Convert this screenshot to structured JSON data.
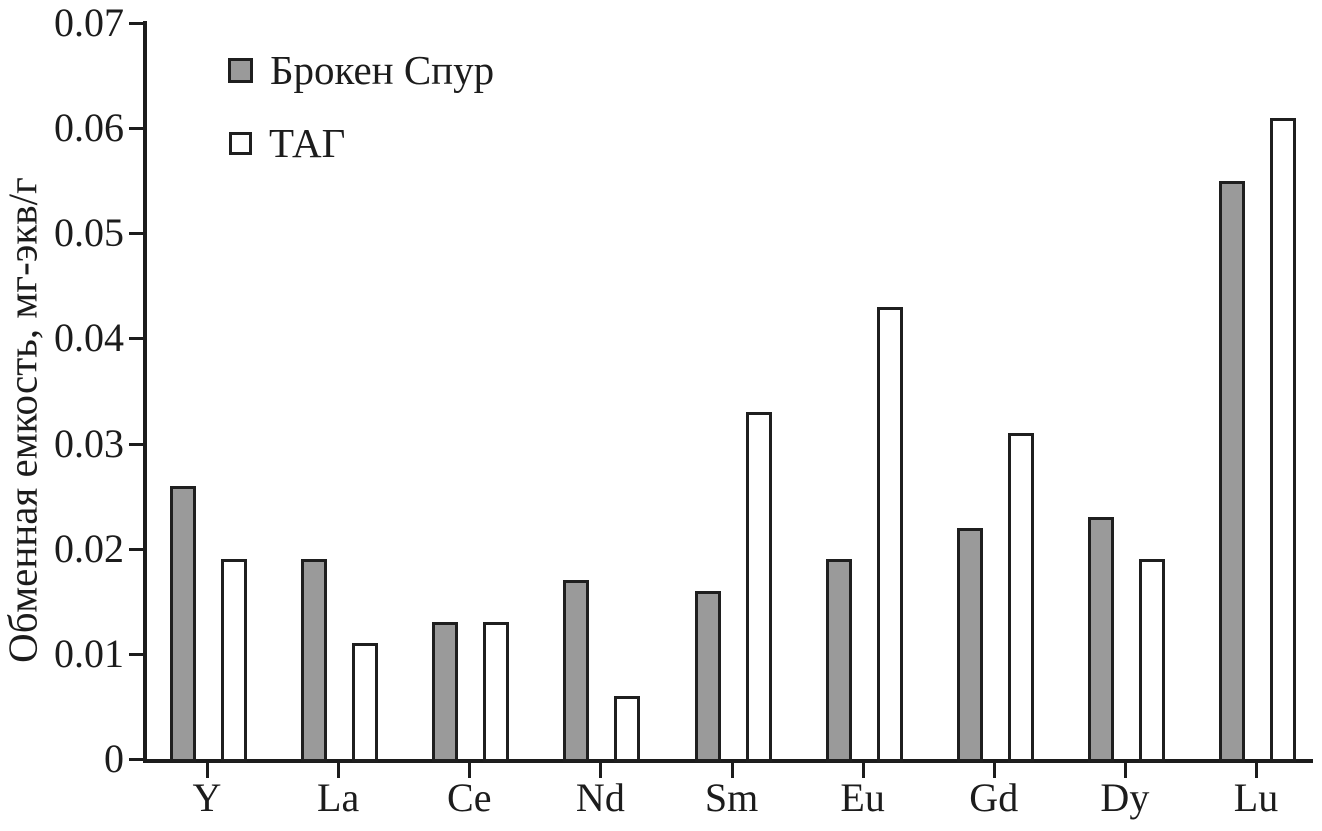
{
  "chart_data": {
    "type": "bar",
    "title": "",
    "xlabel": "",
    "ylabel": "Обменная емкость, мг-экв/г",
    "categories": [
      "Y",
      "La",
      "Ce",
      "Nd",
      "Sm",
      "Eu",
      "Gd",
      "Dy",
      "Lu"
    ],
    "series": [
      {
        "name": "Брокен Спур",
        "fill": "#9a9a9a",
        "values": [
          0.026,
          0.019,
          0.013,
          0.017,
          0.016,
          0.019,
          0.022,
          0.023,
          0.055
        ]
      },
      {
        "name": "ТАГ",
        "fill": "#ffffff",
        "values": [
          0.019,
          0.011,
          0.013,
          0.006,
          0.033,
          0.043,
          0.031,
          0.019,
          0.061
        ]
      }
    ],
    "ylim": [
      0,
      0.07
    ],
    "yticks": [
      0,
      0.01,
      0.02,
      0.03,
      0.04,
      0.05,
      0.06,
      0.07
    ],
    "ytick_labels": [
      "0",
      "0.01",
      "0.02",
      "0.03",
      "0.04",
      "0.05",
      "0.06",
      "0.07"
    ],
    "grid": false,
    "legend_position": "top-left-inside",
    "colors": {
      "axis": "#1c1c1c",
      "bar_border": "#1f1f1f",
      "series1_fill": "#9a9a9a",
      "series2_fill": "#ffffff",
      "text": "#1c1c1c"
    }
  },
  "legend": {
    "items": [
      {
        "label": "Брокен Спур",
        "swatch": "gray-filled-square"
      },
      {
        "label": "ТАГ",
        "swatch": "white-outlined-square"
      }
    ]
  }
}
